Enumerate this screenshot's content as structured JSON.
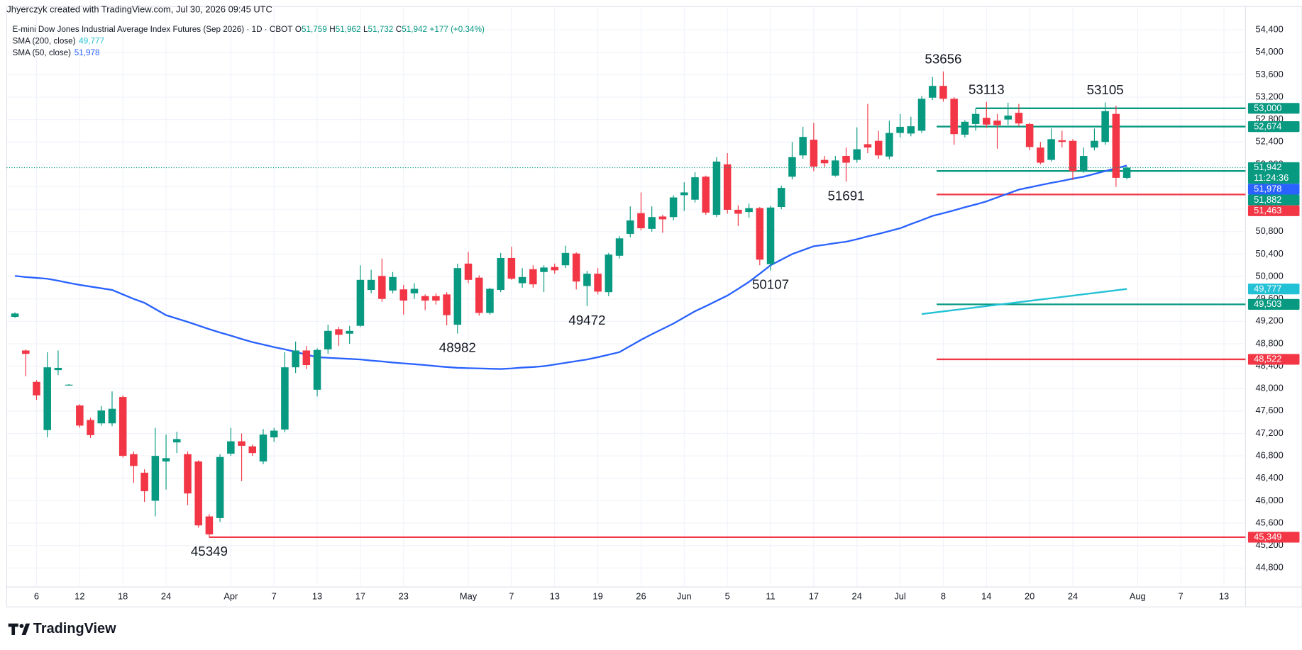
{
  "header": {
    "credit": "Jhyerczyk created with TradingView.com, Jul 30, 2026 09:45 UTC",
    "symbol": "E-mini Dow Jones Industrial Average Index Futures (Sep 2026) · 1D · CBOT",
    "ohlc": [
      {
        "key": "O",
        "text": "51,759"
      },
      {
        "key": "H",
        "text": "51,962"
      },
      {
        "key": "L",
        "text": "51,732"
      },
      {
        "key": "C",
        "text": "51,942"
      }
    ],
    "change": "+177 (+0.34%)"
  },
  "footer": {
    "brand": "TradingView"
  },
  "chart_data": {
    "type": "candlestick",
    "categories": [
      null,
      null,
      "6",
      null,
      null,
      null,
      "12",
      null,
      null,
      null,
      "18",
      null,
      null,
      null,
      "24",
      null,
      null,
      null,
      null,
      null,
      "Apr",
      null,
      null,
      null,
      "7",
      null,
      null,
      null,
      "13",
      null,
      null,
      null,
      "17",
      null,
      null,
      null,
      "23",
      null,
      null,
      null,
      null,
      null,
      "May",
      null,
      null,
      null,
      "7",
      null,
      null,
      null,
      "13",
      null,
      null,
      null,
      "19",
      null,
      null,
      null,
      "26",
      null,
      null,
      null,
      "Jun",
      null,
      null,
      null,
      "5",
      null,
      null,
      null,
      "11",
      null,
      null,
      null,
      "17",
      null,
      null,
      null,
      "24",
      null,
      null,
      null,
      "Jul",
      null,
      null,
      null,
      "8",
      null,
      null,
      null,
      "14",
      null,
      null,
      null,
      "20",
      null,
      null,
      null,
      "24",
      null,
      null,
      null,
      null,
      null,
      "Aug",
      null,
      null,
      null,
      "7",
      null,
      null,
      null,
      "13",
      null
    ],
    "open": [
      49280,
      48680,
      48120,
      47260,
      48330,
      48060,
      47700,
      47440,
      47380,
      47380,
      47850,
      46830,
      46500,
      46000,
      46700,
      47040,
      46830,
      46700,
      45720,
      45690,
      46840,
      47060,
      46970,
      46700,
      47130,
      47270,
      48380,
      48680,
      47980,
      48700,
      49060,
      48980,
      49120,
      49760,
      50010,
      49750,
      49770,
      49700,
      49650,
      49650,
      49680,
      49140,
      50230,
      49980,
      49350,
      49760,
      50330,
      49880,
      50130,
      50080,
      50170,
      50200,
      50410,
      49830,
      50050,
      49720,
      50370,
      50760,
      51130,
      50850,
      51070,
      51060,
      51450,
      51370,
      51780,
      51100,
      52000,
      51190,
      51150,
      51220,
      50220,
      51240,
      51780,
      52160,
      52440,
      52080,
      51800,
      52150,
      52080,
      52360,
      52420,
      52140,
      52560,
      52550,
      52600,
      53190,
      53400,
      53170,
      52530,
      52720,
      52830,
      52780,
      52800,
      52920,
      52720,
      52300,
      52080,
      52430,
      52420,
      51890,
      52300,
      52400,
      52900,
      51759,
      null,
      null,
      null,
      null,
      null,
      null,
      null,
      null,
      null,
      null
    ],
    "high": [
      49360,
      48700,
      48150,
      48650,
      48680,
      48080,
      47720,
      47480,
      47690,
      47950,
      47880,
      46880,
      46560,
      47300,
      47180,
      47230,
      46880,
      46720,
      45760,
      46830,
      47300,
      47200,
      47000,
      47280,
      47300,
      48650,
      48840,
      48760,
      48720,
      49140,
      49100,
      49120,
      50200,
      50120,
      50320,
      50080,
      49850,
      49880,
      49680,
      49700,
      49720,
      50230,
      50440,
      50020,
      49800,
      50420,
      50530,
      50150,
      50200,
      50200,
      50230,
      50550,
      50430,
      50100,
      50150,
      50420,
      50720,
      51250,
      51500,
      51250,
      51100,
      51450,
      51680,
      51860,
      51800,
      52130,
      52200,
      51270,
      51300,
      51240,
      51260,
      51620,
      52400,
      52670,
      52740,
      52150,
      52150,
      52300,
      52660,
      53080,
      52600,
      52780,
      52900,
      52850,
      53220,
      53560,
      53656,
      53200,
      52790,
      53000,
      53113,
      52900,
      53100,
      53080,
      52740,
      52400,
      52640,
      52600,
      52450,
      52300,
      52640,
      53105,
      53050,
      51962,
      null,
      null,
      null,
      null,
      null,
      null,
      null,
      null,
      null,
      null
    ],
    "low": [
      49260,
      48220,
      47800,
      47130,
      48240,
      48050,
      47300,
      47120,
      47340,
      47330,
      46770,
      46320,
      45980,
      45720,
      46200,
      46850,
      45920,
      45520,
      45349,
      45620,
      46800,
      46350,
      46800,
      46650,
      47050,
      47220,
      48280,
      48350,
      47860,
      48620,
      48760,
      48800,
      49100,
      49700,
      49550,
      49700,
      49320,
      49600,
      49400,
      49500,
      49130,
      48982,
      49880,
      49300,
      49320,
      49720,
      49940,
      49800,
      49800,
      49720,
      50050,
      50150,
      49770,
      49472,
      49680,
      49650,
      50320,
      50700,
      50820,
      50800,
      50780,
      51000,
      51170,
      51320,
      51100,
      51060,
      51120,
      50900,
      51050,
      50200,
      50107,
      51200,
      51730,
      52100,
      51880,
      51950,
      51780,
      51691,
      52030,
      52200,
      52100,
      52090,
      52480,
      52500,
      52560,
      53150,
      53120,
      52350,
      52480,
      52600,
      52650,
      52280,
      52700,
      52680,
      52250,
      52000,
      52050,
      52300,
      51720,
      51850,
      52250,
      52350,
      51600,
      51732,
      null,
      null,
      null,
      null,
      null,
      null,
      null,
      null,
      null,
      null
    ],
    "close": [
      49340,
      48620,
      47880,
      48380,
      48370,
      48070,
      47340,
      47170,
      47610,
      47640,
      46800,
      46620,
      46170,
      46800,
      46760,
      47100,
      46130,
      45560,
      45400,
      46780,
      47060,
      46980,
      46850,
      47180,
      47250,
      48380,
      48680,
      48420,
      48690,
      49030,
      48960,
      49030,
      49940,
      49940,
      49600,
      49990,
      49570,
      49780,
      49570,
      49570,
      49310,
      50150,
      49940,
      49350,
      49780,
      50330,
      49960,
      49990,
      49860,
      50160,
      50110,
      50420,
      49910,
      50050,
      49730,
      50390,
      50680,
      51000,
      50860,
      51060,
      51020,
      51410,
      51500,
      51770,
      51140,
      52050,
      51190,
      51120,
      51220,
      50300,
      51230,
      51580,
      52130,
      52490,
      51960,
      52020,
      52070,
      52030,
      52270,
      52300,
      52160,
      52560,
      52670,
      52680,
      53170,
      53400,
      53170,
      52540,
      52760,
      52900,
      52710,
      52700,
      52870,
      52730,
      52310,
      52030,
      52450,
      52400,
      51880,
      52150,
      52420,
      52950,
      51760,
      51942,
      null,
      null,
      null,
      null,
      null,
      null,
      null,
      null,
      null,
      null
    ],
    "up_color": "#089981",
    "down_color": "#f23645",
    "series": [
      {
        "name": "SMA (200, close)",
        "color": "#22c1d6",
        "value_label": "49,777",
        "values": [
          null,
          null,
          null,
          null,
          null,
          null,
          null,
          null,
          null,
          null,
          null,
          null,
          null,
          null,
          null,
          null,
          null,
          null,
          null,
          null,
          null,
          null,
          null,
          null,
          null,
          null,
          null,
          null,
          null,
          null,
          null,
          null,
          null,
          null,
          null,
          null,
          null,
          null,
          null,
          null,
          null,
          null,
          null,
          null,
          null,
          null,
          null,
          null,
          null,
          null,
          null,
          null,
          null,
          null,
          null,
          null,
          null,
          null,
          null,
          null,
          null,
          null,
          null,
          null,
          null,
          null,
          null,
          null,
          null,
          null,
          null,
          null,
          null,
          null,
          null,
          null,
          null,
          null,
          null,
          null,
          null,
          null,
          null,
          null,
          49330,
          49354,
          49377,
          49401,
          49424,
          49448,
          49471,
          49495,
          49518,
          49542,
          49565,
          49589,
          49612,
          49636,
          49659,
          49683,
          49706,
          49730,
          49753,
          49777,
          null,
          null,
          null,
          null,
          null,
          null,
          null,
          null,
          null,
          null
        ]
      },
      {
        "name": "SMA (50, close)",
        "color": "#2962ff",
        "value_label": "51,978",
        "values": [
          50010,
          49990,
          49975,
          49960,
          49925,
          49885,
          49850,
          49820,
          49790,
          49760,
          49680,
          49600,
          49530,
          49420,
          49310,
          49250,
          49190,
          49125,
          49060,
          49000,
          48945,
          48885,
          48830,
          48785,
          48740,
          48700,
          48655,
          48605,
          48560,
          48550,
          48540,
          48530,
          48520,
          48500,
          48485,
          48465,
          48450,
          48435,
          48420,
          48400,
          48385,
          48370,
          48365,
          48360,
          48355,
          48350,
          48360,
          48375,
          48385,
          48400,
          48430,
          48460,
          48490,
          48520,
          48560,
          48605,
          48650,
          48760,
          48870,
          48970,
          49065,
          49160,
          49270,
          49380,
          49470,
          49565,
          49660,
          49780,
          49904,
          50050,
          50200,
          50300,
          50400,
          50470,
          50540,
          50565,
          50595,
          50620,
          50665,
          50715,
          50760,
          50810,
          50860,
          50935,
          51005,
          51080,
          51130,
          51180,
          51235,
          51285,
          51340,
          51410,
          51480,
          51550,
          51590,
          51630,
          51670,
          51705,
          51745,
          51780,
          51830,
          51880,
          51930,
          51978,
          null,
          null,
          null,
          null,
          null,
          null,
          null,
          null,
          null,
          null
        ]
      }
    ],
    "ylim": [
      44461,
      54814
    ],
    "yticks": [
      {
        "value": 44800,
        "label": "44,800"
      },
      {
        "value": 45200,
        "label": "45,200"
      },
      {
        "value": 45600,
        "label": "45,600"
      },
      {
        "value": 46000,
        "label": "46,000"
      },
      {
        "value": 46400,
        "label": "46,400"
      },
      {
        "value": 46800,
        "label": "46,800"
      },
      {
        "value": 47200,
        "label": "47,200"
      },
      {
        "value": 47600,
        "label": "47,600"
      },
      {
        "value": 48000,
        "label": "48,000"
      },
      {
        "value": 48400,
        "label": "48,400"
      },
      {
        "value": 48800,
        "label": "48,800"
      },
      {
        "value": 49200,
        "label": "49,200"
      },
      {
        "value": 49600,
        "label": "49,600"
      },
      {
        "value": 50000,
        "label": "50,000"
      },
      {
        "value": 50400,
        "label": "50,400"
      },
      {
        "value": 50800,
        "label": "50,800"
      },
      {
        "value": 51200,
        "label": "51,200"
      },
      {
        "value": 51600,
        "label": "51,600"
      },
      {
        "value": 52000,
        "label": "52,000"
      },
      {
        "value": 52400,
        "label": "52,400"
      },
      {
        "value": 52800,
        "label": "52,800"
      },
      {
        "value": 53200,
        "label": "53,200"
      },
      {
        "value": 53600,
        "label": "53,600"
      },
      {
        "value": 54000,
        "label": "54,000"
      },
      {
        "value": 54400,
        "label": "54,400"
      }
    ],
    "grid": true,
    "last_price": {
      "value": 51942,
      "label": "51,942",
      "countdown": "11:24:36",
      "color": "#089981"
    },
    "levels": [
      {
        "value": 53000,
        "label": "53,000",
        "color": "#089981"
      },
      {
        "value": 52674,
        "label": "52,674",
        "color": "#089981"
      },
      {
        "value": 51882,
        "label": "51,882",
        "color": "#089981"
      },
      {
        "value": 51463,
        "label": "51,463",
        "color": "#f23645"
      },
      {
        "value": 49503,
        "label": "49,503",
        "color": "#089981"
      },
      {
        "value": 48522,
        "label": "48,522",
        "color": "#f23645"
      },
      {
        "value": 45349,
        "label": "45,349",
        "color": "#f23645"
      }
    ],
    "annotations": [
      53656,
      53113,
      53105,
      51691,
      50107,
      49472,
      48982,
      45349
    ]
  }
}
